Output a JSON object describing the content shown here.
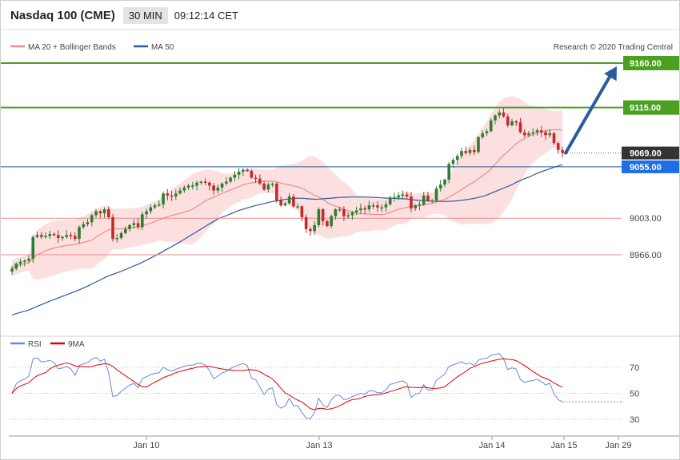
{
  "header": {
    "title": "Nasdaq 100 (CME)",
    "timeframe": "30 MIN",
    "time": "09:12:14 CET"
  },
  "legend": {
    "bollinger": "MA 20 + Bollinger Bands",
    "ma50": "MA 50",
    "copyright": "Research © 2020 Trading Central",
    "rsi": "RSI",
    "rsi_ma": "9MA"
  },
  "colors": {
    "up": "#2e7d32",
    "down": "#c62828",
    "band": "#fbdada",
    "ma20": "#f08a8a",
    "ma50": "#2c5aa0",
    "green_level": "#4aa01f",
    "red_level": "#f08a8a",
    "arrow": "#2c5aa0",
    "rsi": "#6688dd",
    "rsi_ma": "#e00000"
  },
  "levels": {
    "green": [
      {
        "value": 9160.0,
        "label": "9160.00"
      },
      {
        "value": 9115.0,
        "label": "9115.00"
      }
    ],
    "red": [
      {
        "value": 9003.0,
        "label": "9003.00"
      },
      {
        "value": 8966.0,
        "label": "8966.00"
      }
    ],
    "current": {
      "value": 9069.0,
      "label": "9069.00"
    },
    "ma": {
      "value": 9055.0,
      "label": "9055.00"
    }
  },
  "rsi_ticks": [
    "70",
    "50",
    "30"
  ],
  "chart_data": {
    "type": "candlestick",
    "x_ticks": [
      "Jan 10",
      "Jan 13",
      "Jan 14",
      "Jan 15",
      "Jan 29"
    ],
    "close": [
      8952,
      8957,
      8959,
      8960,
      8962,
      8984,
      8986,
      8984,
      8985,
      8987,
      8986,
      8983,
      8984,
      8986,
      8985,
      8982,
      8994,
      8997,
      8999,
      9006,
      9010,
      9008,
      9012,
      9004,
      8982,
      8983,
      8988,
      8992,
      8996,
      8998,
      8994,
      9007,
      9010,
      9014,
      9016,
      9017,
      9028,
      9026,
      9025,
      9028,
      9031,
      9034,
      9036,
      9036,
      9039,
      9040,
      9039,
      9036,
      9031,
      9034,
      9038,
      9040,
      9044,
      9047,
      9050,
      9052,
      9051,
      9044,
      9043,
      9038,
      9032,
      9037,
      9038,
      9021,
      9016,
      9018,
      9025,
      9015,
      9015,
      9004,
      8992,
      8990,
      8996,
      9012,
      9000,
      8995,
      9005,
      9012,
      9012,
      9005,
      9006,
      9009,
      9011,
      9013,
      9012,
      9016,
      9016,
      9014,
      9014,
      9017,
      9023,
      9024,
      9026,
      9027,
      9025,
      9013,
      9016,
      9017,
      9026,
      9021,
      9021,
      9033,
      9037,
      9042,
      9058,
      9062,
      9066,
      9071,
      9069,
      9072,
      9070,
      9085,
      9089,
      9091,
      9102,
      9107,
      9110,
      9106,
      9097,
      9101,
      9100,
      9090,
      9087,
      9089,
      9090,
      9092,
      9090,
      9087,
      9089,
      9079,
      9072,
      9069
    ]
  }
}
